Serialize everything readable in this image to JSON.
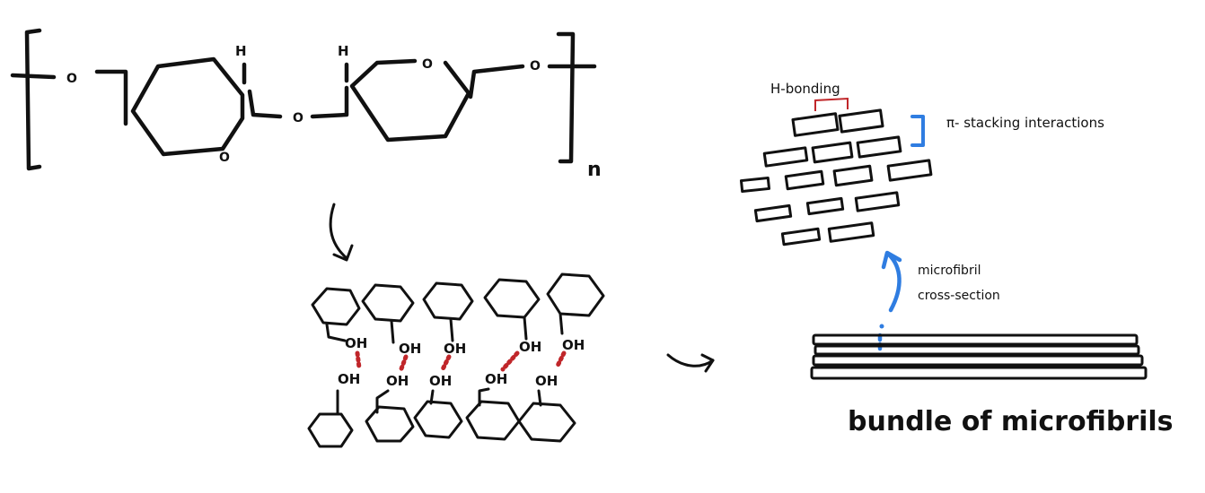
{
  "colors": {
    "ink": "#111111",
    "hydrogen_bond": "#c0262a",
    "annotation_blue": "#2f7de1",
    "background": "#ffffff"
  },
  "polymer_repeat_unit": {
    "atoms": {
      "o_left": "O",
      "o_ring_left": "O",
      "h_left": "H",
      "o_bridge": "O",
      "h_right": "H",
      "o_ring_right": "O",
      "o_right": "O"
    },
    "subscript": "n"
  },
  "hydrogen_bonded_chains": {
    "top_labels": [
      "OH",
      "OH",
      "OH",
      "OH",
      "OH"
    ],
    "bottom_labels": [
      "OH",
      "OH",
      "OH",
      "OH",
      "OH"
    ]
  },
  "microfibril_cross_section": {
    "h_bonding_label": "H-bonding",
    "pi_stacking_label": "π- stacking interactions"
  },
  "bundle": {
    "arrow_label_line1": "microfibril",
    "arrow_label_line2": "cross-section",
    "caption": "bundle of microfibrils"
  },
  "icons": [
    "curved-down-arrow-icon",
    "curved-right-arrow-icon",
    "curved-up-arrow-icon"
  ]
}
